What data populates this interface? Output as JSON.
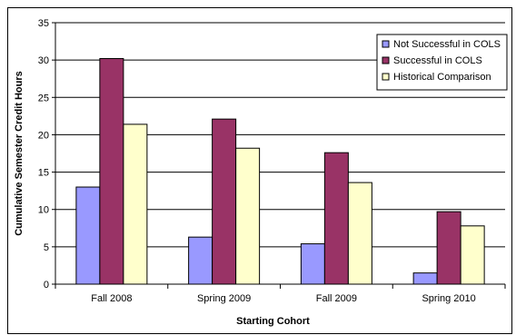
{
  "chart_data": {
    "type": "bar",
    "title": "",
    "xlabel": "Starting Cohort",
    "ylabel": "Cumulative Semester Credit Hours",
    "categories": [
      "Fall 2008",
      "Spring 2009",
      "Fall 2009",
      "Spring 2010"
    ],
    "ylim": [
      0,
      35
    ],
    "yticks": [
      0,
      5,
      10,
      15,
      20,
      25,
      30,
      35
    ],
    "grid": "horizontal",
    "legend_position": "top-right",
    "series": [
      {
        "name": "Not Successful in COLS",
        "color": "#9999ff",
        "values": [
          13.0,
          6.3,
          5.4,
          1.5
        ]
      },
      {
        "name": "Successful in COLS",
        "color": "#993366",
        "values": [
          30.2,
          22.1,
          17.6,
          9.7
        ]
      },
      {
        "name": "Historical Comparison",
        "color": "#ffffcc",
        "values": [
          21.4,
          18.2,
          13.6,
          7.8
        ]
      }
    ]
  }
}
